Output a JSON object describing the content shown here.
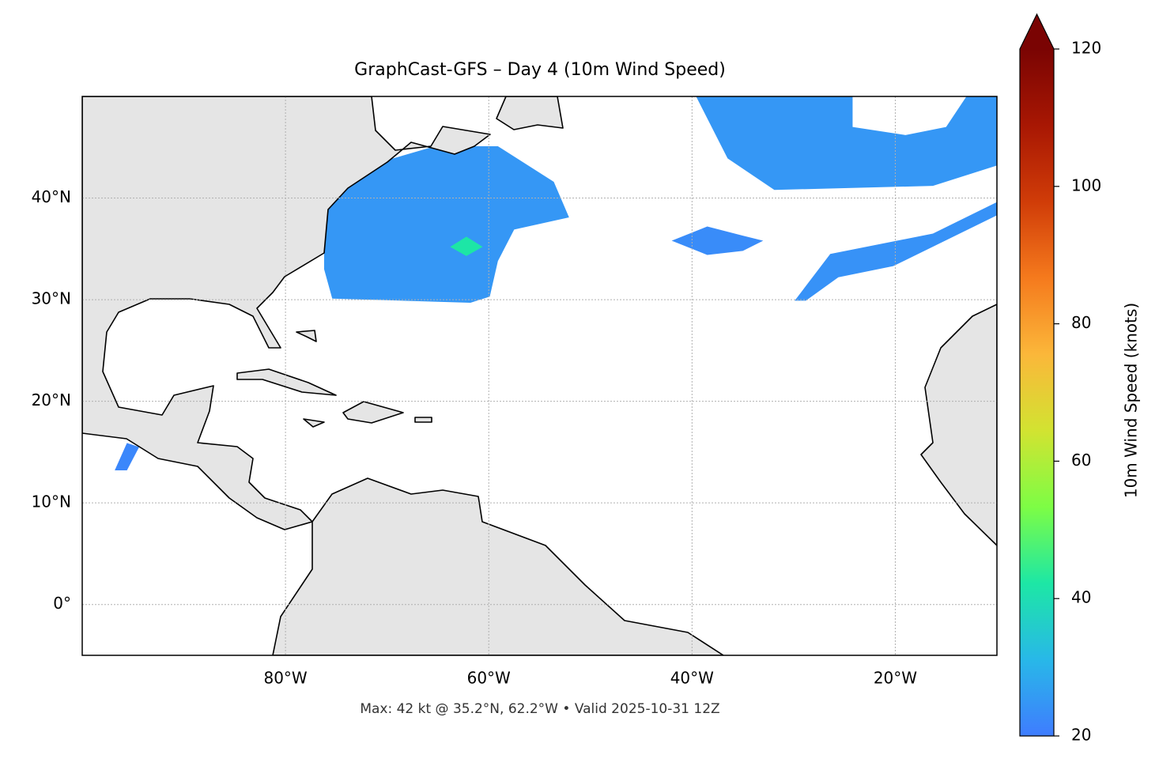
{
  "chart_data": {
    "type": "map",
    "title": "GraphCast-GFS – Day 4 (10m Wind Speed)",
    "footnote": "Max: 42 kt @ 35.2°N, 62.2°W • Valid 2025-10-31 12Z",
    "xlim": [
      -100,
      -10
    ],
    "ylim": [
      -5,
      50
    ],
    "xticks": [
      {
        "value": -80,
        "label": "80°W"
      },
      {
        "value": -60,
        "label": "60°W"
      },
      {
        "value": -40,
        "label": "40°W"
      },
      {
        "value": -20,
        "label": "20°W"
      }
    ],
    "yticks": [
      {
        "value": 0,
        "label": "0°"
      },
      {
        "value": 10,
        "label": "10°N"
      },
      {
        "value": 20,
        "label": "20°N"
      },
      {
        "value": 30,
        "label": "30°N"
      },
      {
        "value": 40,
        "label": "40°N"
      }
    ],
    "grid": true,
    "colorbar": {
      "label": "10m Wind Speed (knots)",
      "lim": [
        20,
        120
      ],
      "ticks": [
        20,
        40,
        60,
        80,
        100,
        120
      ],
      "colormap": [
        "#3f7cff",
        "#28b8e8",
        "#1de7a5",
        "#7dfd45",
        "#d2e331",
        "#fbb73a",
        "#f57a1d",
        "#d03c08",
        "#a81703",
        "#7a0403"
      ]
    },
    "wind_areas": [
      {
        "speed": 25,
        "lon": [
          -76.2,
          -70.8,
          -65.3,
          -59.1,
          -53.6,
          -52.1,
          -57.5,
          -59.1,
          -59.9,
          -61.8,
          -75.4,
          -76.2
        ],
        "lat": [
          40.4,
          43.5,
          45.1,
          45.1,
          41.6,
          38.1,
          36.9,
          33.8,
          30.3,
          29.7,
          30.1,
          33.0
        ]
      },
      {
        "speed": 42,
        "lon": [
          -63.8,
          -62.2,
          -60.6,
          -62.2
        ],
        "lat": [
          35.2,
          36.2,
          35.2,
          34.3
        ]
      },
      {
        "speed": 25,
        "lon": [
          -39.6,
          -24.2,
          -24.2,
          -19,
          -15,
          -13,
          -10,
          -10,
          -16.3,
          -31.9,
          -36.5
        ],
        "lat": [
          50,
          50,
          47,
          46.2,
          47,
          50,
          50,
          43.2,
          41.2,
          40.8,
          43.9
        ]
      },
      {
        "speed": 23,
        "lon": [
          -42,
          -38.5,
          -35,
          -33,
          -35,
          -38.5
        ],
        "lat": [
          35.8,
          37.2,
          36.3,
          35.8,
          34.8,
          34.4
        ]
      },
      {
        "speed": 24,
        "lon": [
          -29.9,
          -26.4,
          -16.3,
          -10,
          -10,
          -20.2,
          -25.6,
          -28.8
        ],
        "lat": [
          29.9,
          34.5,
          36.5,
          39.6,
          38.3,
          33.3,
          32.2,
          29.9
        ]
      },
      {
        "speed": 22,
        "lon": [
          -96.8,
          -95.6,
          -94.4,
          -95.6
        ],
        "lat": [
          13.2,
          15.9,
          15.5,
          13.2
        ]
      }
    ]
  }
}
